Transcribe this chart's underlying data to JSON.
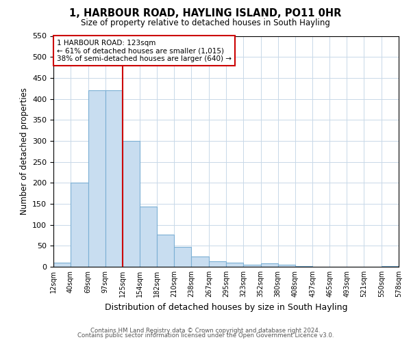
{
  "title": "1, HARBOUR ROAD, HAYLING ISLAND, PO11 0HR",
  "subtitle": "Size of property relative to detached houses in South Hayling",
  "xlabel": "Distribution of detached houses by size in South Hayling",
  "ylabel": "Number of detached properties",
  "bin_edges": [
    12,
    40,
    69,
    97,
    125,
    154,
    182,
    210,
    238,
    267,
    295,
    323,
    352,
    380,
    408,
    437,
    465,
    493,
    521,
    550,
    578
  ],
  "bin_labels": [
    "12sqm",
    "40sqm",
    "69sqm",
    "97sqm",
    "125sqm",
    "154sqm",
    "182sqm",
    "210sqm",
    "238sqm",
    "267sqm",
    "295sqm",
    "323sqm",
    "352sqm",
    "380sqm",
    "408sqm",
    "437sqm",
    "465sqm",
    "493sqm",
    "521sqm",
    "550sqm",
    "578sqm"
  ],
  "counts": [
    10,
    200,
    420,
    420,
    300,
    143,
    77,
    48,
    25,
    13,
    10,
    5,
    8,
    5,
    2,
    0,
    0,
    0,
    0,
    2
  ],
  "bar_color": "#c8ddf0",
  "bar_edge_color": "#7bafd4",
  "property_line_x": 125,
  "property_line_color": "#cc0000",
  "annotation_text_line1": "1 HARBOUR ROAD: 123sqm",
  "annotation_text_line2": "← 61% of detached houses are smaller (1,015)",
  "annotation_text_line3": "38% of semi-detached houses are larger (640) →",
  "annotation_box_color": "#ffffff",
  "annotation_box_edge_color": "#cc0000",
  "ylim": [
    0,
    550
  ],
  "yticks": [
    0,
    50,
    100,
    150,
    200,
    250,
    300,
    350,
    400,
    450,
    500,
    550
  ],
  "footer_line1": "Contains HM Land Registry data © Crown copyright and database right 2024.",
  "footer_line2": "Contains public sector information licensed under the Open Government Licence v3.0.",
  "background_color": "#ffffff",
  "grid_color": "#c8d8e8"
}
